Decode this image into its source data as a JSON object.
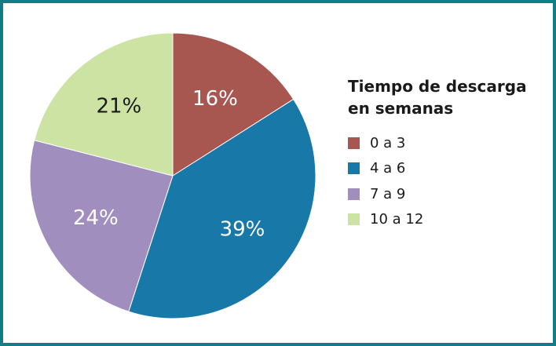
{
  "chart_data": {
    "type": "pie",
    "legend_title": [
      "Tiempo de descarga",
      "en semanas"
    ],
    "legend_position": "right",
    "series": [
      {
        "name": "0 a 3",
        "value": 16,
        "label": "16%",
        "color": "#a85650",
        "label_color": "#ffffff"
      },
      {
        "name": "4 a 6",
        "value": 39,
        "label": "39%",
        "color": "#1878a8",
        "label_color": "#ffffff"
      },
      {
        "name": "7 a 9",
        "value": 24,
        "label": "24%",
        "color": "#a08ebe",
        "label_color": "#ffffff"
      },
      {
        "name": "10 a 12",
        "value": 21,
        "label": "21%",
        "color": "#cce3a4",
        "label_color": "#1a1a1a"
      }
    ]
  },
  "frame_color": "#0f7f87"
}
